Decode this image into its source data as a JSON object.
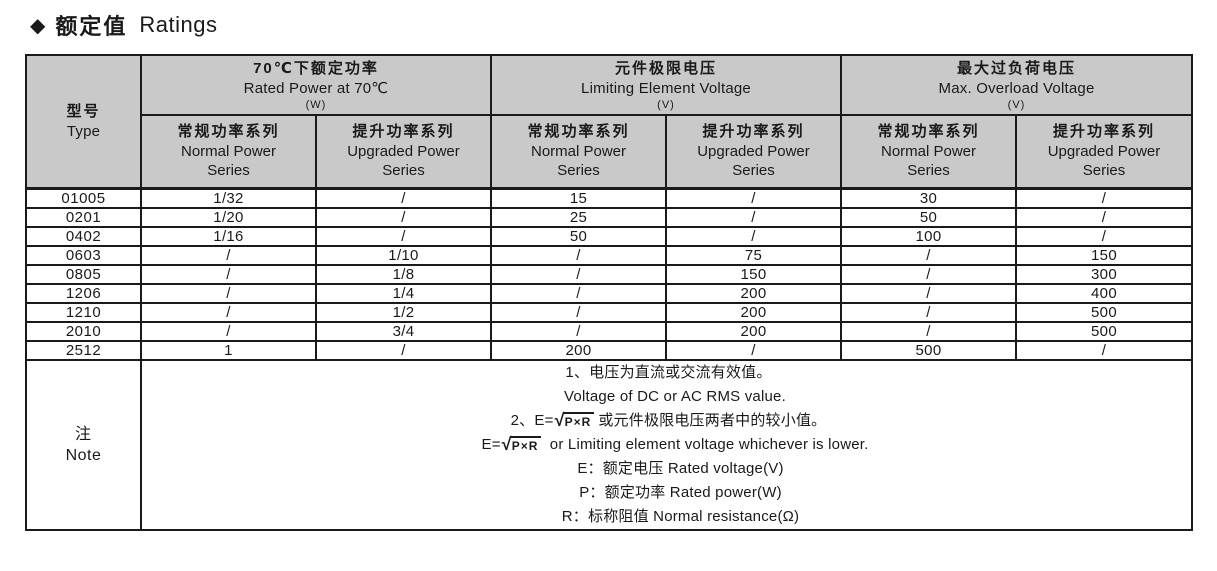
{
  "colors": {
    "header_bg": "#c9c9c9",
    "border": "#1a1a1a",
    "text": "#1a1a1a",
    "page_bg": "#ffffff"
  },
  "title": {
    "icon": "◆",
    "zh": "额定值",
    "en": "Ratings"
  },
  "table": {
    "type_header": {
      "zh": "型号",
      "en": "Type"
    },
    "groups": [
      {
        "zh": "70℃下额定功率",
        "en": "Rated Power at 70℃",
        "unit": "(W)"
      },
      {
        "zh": "元件极限电压",
        "en": "Limiting Element Voltage",
        "unit": "(V)"
      },
      {
        "zh": "最大过负荷电压",
        "en": "Max. Overload Voltage",
        "unit": "(V)"
      }
    ],
    "subcolumns": [
      {
        "zh": "常规功率系列",
        "en": "Normal Power Series"
      },
      {
        "zh": "提升功率系列",
        "en": "Upgraded Power Series"
      }
    ],
    "rows": [
      {
        "type": "01005",
        "values": [
          "1/32",
          "/",
          "15",
          "/",
          "30",
          "/"
        ]
      },
      {
        "type": "0201",
        "values": [
          "1/20",
          "/",
          "25",
          "/",
          "50",
          "/"
        ]
      },
      {
        "type": "0402",
        "values": [
          "1/16",
          "/",
          "50",
          "/",
          "100",
          "/"
        ]
      },
      {
        "type": "0603",
        "values": [
          "/",
          "1/10",
          "/",
          "75",
          "/",
          "150"
        ]
      },
      {
        "type": "0805",
        "values": [
          "/",
          "1/8",
          "/",
          "150",
          "/",
          "300"
        ]
      },
      {
        "type": "1206",
        "values": [
          "/",
          "1/4",
          "/",
          "200",
          "/",
          "400"
        ]
      },
      {
        "type": "1210",
        "values": [
          "/",
          "1/2",
          "/",
          "200",
          "/",
          "500"
        ]
      },
      {
        "type": "2010",
        "values": [
          "/",
          "3/4",
          "/",
          "200",
          "/",
          "500"
        ]
      },
      {
        "type": "2512",
        "values": [
          "1",
          "/",
          "200",
          "/",
          "500",
          "/"
        ]
      }
    ]
  },
  "note": {
    "label_zh": "注",
    "label_en": "Note",
    "radical": "√",
    "lines": [
      {
        "indent": 0,
        "text": "1、电压为直流或交流有效值。"
      },
      {
        "indent": 1,
        "text": "Voltage of DC or AC RMS value."
      },
      {
        "indent": 0,
        "prefix": "2、E=",
        "sqrt": "P×R",
        "suffix": "或元件极限电压两者中的较小值。"
      },
      {
        "indent": 1,
        "prefix": "E=",
        "sqrt": "P×R",
        "suffix": " or Limiting element voltage whichever is lower."
      },
      {
        "indent": 2,
        "text": "E：额定电压 Rated voltage(V)"
      },
      {
        "indent": 2,
        "text": "P：额定功率 Rated power(W)"
      },
      {
        "indent": 2,
        "text": "R：标称阻值 Normal resistance(Ω)"
      }
    ]
  }
}
